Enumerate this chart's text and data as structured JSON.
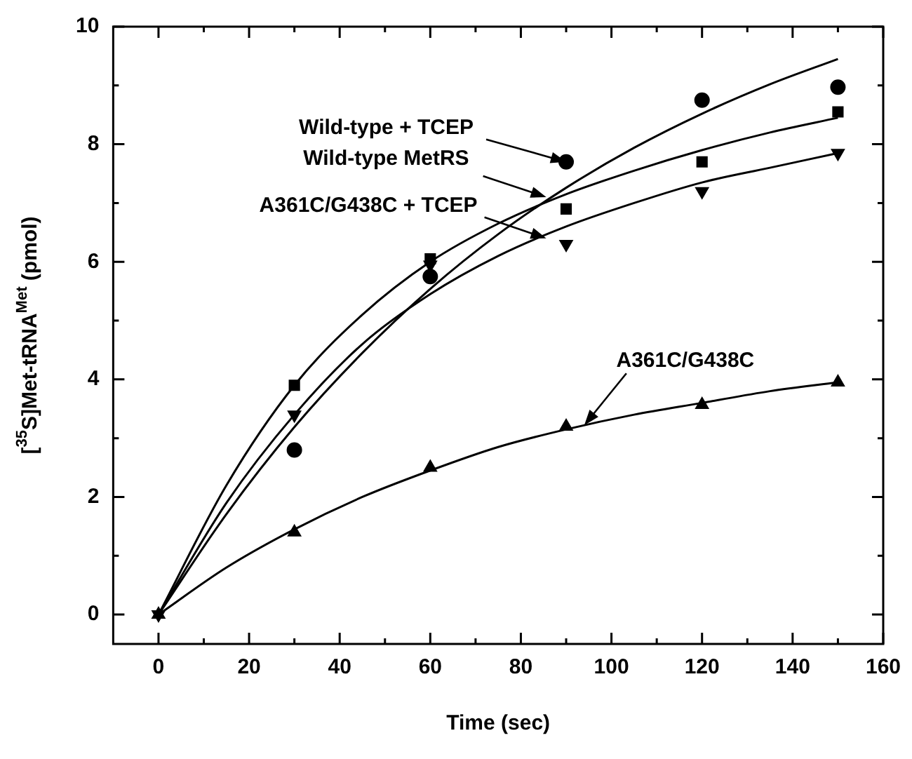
{
  "chart_data": {
    "type": "scatter",
    "xlabel": "Time (sec)",
    "ylabel": "[$^{35}$S]Met-tRNA$^{Met}$ (pmol)",
    "xlim": [
      -10,
      160
    ],
    "xticks": [
      0,
      20,
      40,
      60,
      80,
      100,
      120,
      140,
      160
    ],
    "ylim": [
      -0.5,
      10
    ],
    "yticks": [
      0,
      2,
      4,
      6,
      8,
      10
    ],
    "grid": false,
    "legend": false,
    "series": [
      {
        "type": "scatter",
        "marker": "circle",
        "color": "#000000",
        "x": [
          30,
          60,
          90,
          120,
          150
        ],
        "values": [
          2.8,
          5.75,
          7.7,
          8.75,
          8.97
        ]
      },
      {
        "type": "scatter",
        "marker": "square",
        "color": "#000000",
        "x": [
          30,
          60,
          90,
          120,
          150
        ],
        "values": [
          3.9,
          6.05,
          6.9,
          7.7,
          8.55
        ]
      },
      {
        "type": "scatter",
        "marker": "triangle",
        "color": "#000000",
        "x": [
          0,
          30,
          60,
          90,
          120,
          150
        ],
        "values": [
          0,
          3.4,
          5.95,
          6.3,
          7.2,
          7.85
        ]
      },
      {
        "type": "scatter",
        "marker": "triangle",
        "color": "#000000",
        "x": [
          0,
          30,
          60,
          90,
          120,
          150
        ],
        "values": [
          0,
          1.4,
          2.5,
          3.2,
          3.57,
          3.95
        ]
      },
      {
        "type": "line",
        "marker": "none",
        "color": "#000000",
        "x": [
          0,
          15,
          30,
          45,
          60,
          75,
          90,
          105,
          120,
          135,
          150
        ],
        "values": [
          0,
          1.71,
          3.19,
          4.45,
          5.54,
          6.47,
          7.26,
          7.94,
          8.52,
          9.02,
          9.45
        ]
      },
      {
        "type": "line",
        "marker": "none",
        "color": "#000000",
        "x": [
          0,
          15,
          30,
          45,
          60,
          75,
          90,
          105,
          120,
          135,
          150
        ],
        "values": [
          0,
          2.2,
          3.9,
          5.1,
          6.0,
          6.65,
          7.15,
          7.55,
          7.9,
          8.2,
          8.45
        ]
      },
      {
        "type": "line",
        "marker": "none",
        "color": "#000000",
        "x": [
          0,
          15,
          30,
          45,
          60,
          75,
          90,
          105,
          120,
          135,
          150
        ],
        "values": [
          0,
          1.9,
          3.4,
          4.6,
          5.45,
          6.1,
          6.6,
          7.0,
          7.35,
          7.6,
          7.85
        ]
      },
      {
        "type": "line",
        "marker": "none",
        "color": "#000000",
        "x": [
          0,
          15,
          30,
          45,
          60,
          75,
          90,
          105,
          120,
          135,
          150
        ],
        "values": [
          0,
          0.8,
          1.45,
          2.0,
          2.45,
          2.85,
          3.15,
          3.4,
          3.6,
          3.8,
          3.95
        ]
      }
    ],
    "annotations": [
      {
        "text": "Wild-type + TCEP",
        "x": 90,
        "y": 7.7
      },
      {
        "text": "Wild-type MetRS",
        "x": 85.6,
        "y": 7.1
      },
      {
        "text": "A361C/G438C + TCEP",
        "x": 85.6,
        "y": 6.4
      },
      {
        "text": "A361C/G438C",
        "x": 94,
        "y": 3.22
      }
    ]
  }
}
